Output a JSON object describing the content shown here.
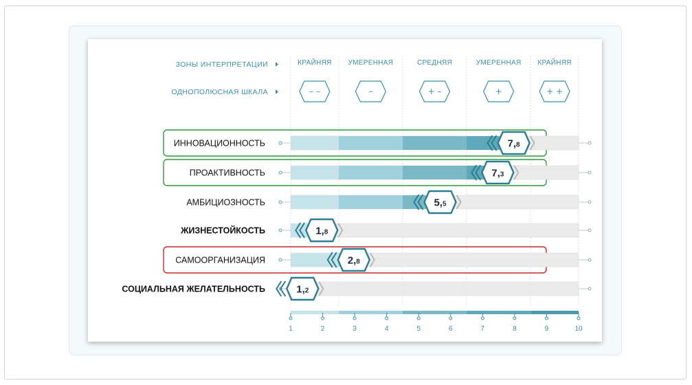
{
  "header": {
    "zones_label": "ЗОНЫ ИНТЕРПРЕТАЦИИ",
    "scale_label": "ОДНОПОЛЮСНАЯ ШКАЛА"
  },
  "zones": [
    {
      "name": "КРАЙНЯЯ",
      "symbol": "– –"
    },
    {
      "name": "УМЕРЕННАЯ",
      "symbol": "–"
    },
    {
      "name": "СРЕДНЯЯ",
      "symbol": "+ –"
    },
    {
      "name": "УМЕРЕННАЯ",
      "symbol": "+"
    },
    {
      "name": "КРАЙНЯЯ",
      "symbol": "+ +"
    }
  ],
  "chart_data": {
    "type": "bar",
    "orientation": "horizontal",
    "categories": [
      "ИННОВАЦИОННОСТЬ",
      "ПРОАКТИВНОСТЬ",
      "АМБИЦИОЗНОСТЬ",
      "ЖИЗНЕСТОЙКОСТЬ",
      "САМООРГАНИЗАЦИЯ",
      "СОЦИАЛЬНАЯ ЖЕЛАТЕЛЬНОСТЬ"
    ],
    "values": [
      7.8,
      7.3,
      5.5,
      1.8,
      2.8,
      1.2
    ],
    "value_labels": [
      {
        "int": "7,",
        "dec": "8"
      },
      {
        "int": "7,",
        "dec": "3"
      },
      {
        "int": "5,",
        "dec": "5"
      },
      {
        "int": "1,",
        "dec": "8"
      },
      {
        "int": "2,",
        "dec": "8"
      },
      {
        "int": "1,",
        "dec": "2"
      }
    ],
    "bold_categories": [
      "ЖИЗНЕСТОЙКОСТЬ",
      "СОЦИАЛЬНАЯ ЖЕЛАТЕЛЬНОСТЬ"
    ],
    "highlights": [
      {
        "category": "ИННОВАЦИОННОСТЬ",
        "color": "#2e9a3e"
      },
      {
        "category": "ПРОАКТИВНОСТЬ",
        "color": "#2e9a3e"
      },
      {
        "category": "САМООРГАНИЗАЦИЯ",
        "color": "#c62828"
      }
    ],
    "xlim": [
      1,
      10
    ],
    "ticks": [
      "1",
      "2",
      "3",
      "4",
      "5",
      "6",
      "7",
      "8",
      "9",
      "10"
    ],
    "zone_boundaries": [
      1,
      2.5,
      4.5,
      6.5,
      8.5,
      10
    ],
    "zone_colors": [
      "#c6e3ea",
      "#9fd0db",
      "#7ab8c6",
      "#5ea8b9",
      "#4a99ad"
    ],
    "track_color": "#ebebeb",
    "badge_color": "#2c7d93"
  }
}
